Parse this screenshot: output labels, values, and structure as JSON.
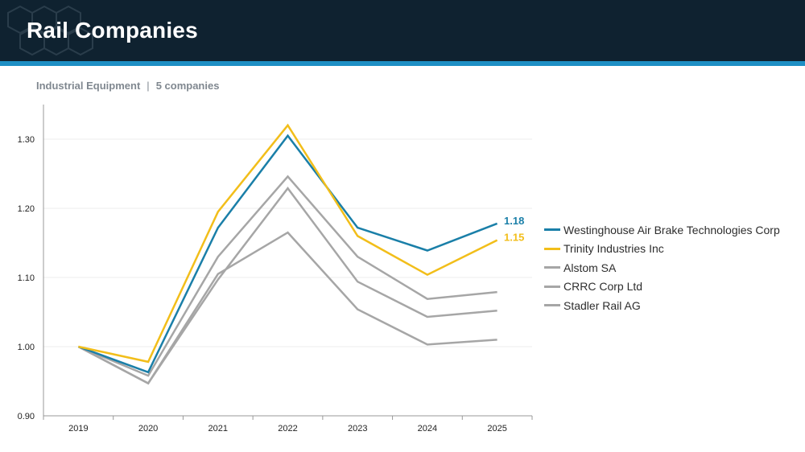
{
  "header": {
    "title": "Rail Companies"
  },
  "subtitle": {
    "sector": "Industrial Equipment",
    "separator": "|",
    "count": "5 companies"
  },
  "colors": {
    "header_bg": "#0f2230",
    "accent_bar": "#1e8fc4"
  },
  "chart_data": {
    "type": "line",
    "x": [
      "2019",
      "2020",
      "2021",
      "2022",
      "2023",
      "2024",
      "2025"
    ],
    "ylim": [
      0.9,
      1.35
    ],
    "yticks": [
      "0.90",
      "1.00",
      "1.10",
      "1.20",
      "1.30"
    ],
    "grid": true,
    "legend_position": "right",
    "series": [
      {
        "name": "Westinghouse Air Brake Technologies Corp",
        "color": "#1a7fa8",
        "values": [
          1.0,
          0.963,
          1.172,
          1.305,
          1.172,
          1.139,
          1.178
        ],
        "end_label": "1.18",
        "highlight": true
      },
      {
        "name": "Trinity Industries Inc",
        "color": "#f2be1a",
        "values": [
          1.0,
          0.978,
          1.195,
          1.32,
          1.16,
          1.104,
          1.154
        ],
        "end_label": "1.15",
        "highlight": true
      },
      {
        "name": "Alstom SA",
        "color": "#a6a6a6",
        "values": [
          1.0,
          0.958,
          1.13,
          1.246,
          1.13,
          1.069,
          1.079
        ]
      },
      {
        "name": "CRRC Corp Ltd",
        "color": "#a6a6a6",
        "values": [
          1.0,
          0.947,
          1.097,
          1.229,
          1.094,
          1.043,
          1.052
        ]
      },
      {
        "name": "Stadler Rail AG",
        "color": "#a6a6a6",
        "values": [
          1.0,
          0.947,
          1.105,
          1.165,
          1.054,
          1.003,
          1.01
        ]
      }
    ]
  }
}
